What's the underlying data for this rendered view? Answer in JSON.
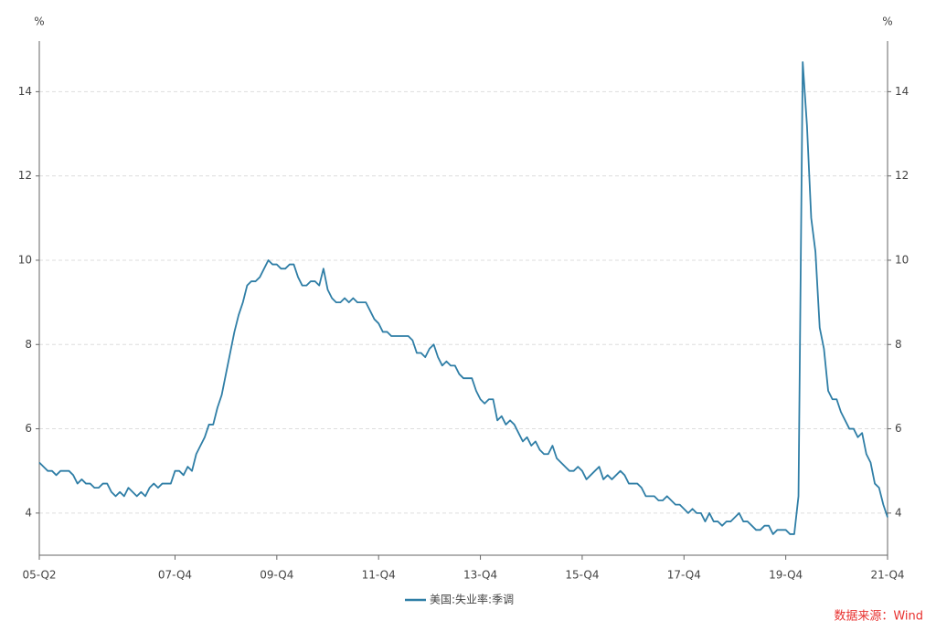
{
  "chart_data": {
    "type": "line",
    "y_label": "%",
    "y2_label": "%",
    "categories": [
      "05-Q2",
      null,
      null,
      null,
      null,
      null,
      null,
      null,
      null,
      null,
      null,
      null,
      null,
      null,
      null,
      null,
      null,
      null,
      null,
      null,
      null,
      null,
      null,
      null,
      null,
      null,
      null,
      null,
      null,
      null,
      null,
      null,
      "07-Q4",
      null,
      null,
      null,
      null,
      null,
      null,
      null,
      null,
      null,
      null,
      null,
      null,
      null,
      null,
      null,
      null,
      null,
      null,
      null,
      null,
      null,
      null,
      null,
      "09-Q4",
      null,
      null,
      null,
      null,
      null,
      null,
      null,
      null,
      null,
      null,
      null,
      null,
      null,
      null,
      null,
      null,
      null,
      null,
      null,
      null,
      null,
      null,
      null,
      "11-Q4",
      null,
      null,
      null,
      null,
      null,
      null,
      null,
      null,
      null,
      null,
      null,
      null,
      null,
      null,
      null,
      null,
      null,
      null,
      null,
      null,
      null,
      null,
      null,
      "13-Q4",
      null,
      null,
      null,
      null,
      null,
      null,
      null,
      null,
      null,
      null,
      null,
      null,
      null,
      null,
      null,
      null,
      null,
      null,
      null,
      null,
      null,
      null,
      null,
      "15-Q4",
      null,
      null,
      null,
      null,
      null,
      null,
      null,
      null,
      null,
      null,
      null,
      null,
      null,
      null,
      null,
      null,
      null,
      null,
      null,
      null,
      null,
      null,
      null,
      "17-Q4",
      null,
      null,
      null,
      null,
      null,
      null,
      null,
      null,
      null,
      null,
      null,
      null,
      null,
      null,
      null,
      null,
      null,
      null,
      null,
      null,
      null,
      null,
      null,
      "19-Q4",
      null,
      null,
      null,
      null,
      null,
      null,
      null,
      null,
      null,
      null,
      null,
      null,
      null,
      null,
      null,
      null,
      null,
      null,
      null,
      null,
      null,
      null,
      null,
      "21-Q4"
    ],
    "series": [
      {
        "name": "美国:失业率:季调",
        "color": "#2f7ea6",
        "values": [
          5.2,
          5.1,
          5.0,
          5.0,
          4.9,
          5.0,
          5.0,
          5.0,
          4.9,
          4.7,
          4.8,
          4.7,
          4.7,
          4.6,
          4.6,
          4.7,
          4.7,
          4.5,
          4.4,
          4.5,
          4.4,
          4.6,
          4.5,
          4.4,
          4.5,
          4.4,
          4.6,
          4.7,
          4.6,
          4.7,
          4.7,
          4.7,
          5.0,
          5.0,
          4.9,
          5.1,
          5.0,
          5.4,
          5.6,
          5.8,
          6.1,
          6.1,
          6.5,
          6.8,
          7.3,
          7.8,
          8.3,
          8.7,
          9.0,
          9.4,
          9.5,
          9.5,
          9.6,
          9.8,
          10.0,
          9.9,
          9.9,
          9.8,
          9.8,
          9.9,
          9.9,
          9.6,
          9.4,
          9.4,
          9.5,
          9.5,
          9.4,
          9.8,
          9.3,
          9.1,
          9.0,
          9.0,
          9.1,
          9.0,
          9.1,
          9.0,
          9.0,
          9.0,
          8.8,
          8.6,
          8.5,
          8.3,
          8.3,
          8.2,
          8.2,
          8.2,
          8.2,
          8.2,
          8.1,
          7.8,
          7.8,
          7.7,
          7.9,
          8.0,
          7.7,
          7.5,
          7.6,
          7.5,
          7.5,
          7.3,
          7.2,
          7.2,
          7.2,
          6.9,
          6.7,
          6.6,
          6.7,
          6.7,
          6.2,
          6.3,
          6.1,
          6.2,
          6.1,
          5.9,
          5.7,
          5.8,
          5.6,
          5.7,
          5.5,
          5.4,
          5.4,
          5.6,
          5.3,
          5.2,
          5.1,
          5.0,
          5.0,
          5.1,
          5.0,
          4.8,
          4.9,
          5.0,
          5.1,
          4.8,
          4.9,
          4.8,
          4.9,
          5.0,
          4.9,
          4.7,
          4.7,
          4.7,
          4.6,
          4.4,
          4.4,
          4.4,
          4.3,
          4.3,
          4.4,
          4.3,
          4.2,
          4.2,
          4.1,
          4.0,
          4.1,
          4.0,
          4.0,
          3.8,
          4.0,
          3.8,
          3.8,
          3.7,
          3.8,
          3.8,
          3.9,
          4.0,
          3.8,
          3.8,
          3.7,
          3.6,
          3.6,
          3.7,
          3.7,
          3.5,
          3.6,
          3.6,
          3.6,
          3.5,
          3.5,
          4.4,
          14.7,
          13.2,
          11.0,
          10.2,
          8.4,
          7.9,
          6.9,
          6.7,
          6.7,
          6.4,
          6.2,
          6.0,
          6.0,
          5.8,
          5.9,
          5.4,
          5.2,
          4.7,
          4.6,
          4.2,
          3.9
        ]
      }
    ],
    "ylim": [
      3,
      15.2
    ],
    "yticks": [
      4,
      6,
      8,
      10,
      12,
      14
    ],
    "y2lim": [
      3,
      15.2
    ],
    "y2ticks": [
      4,
      6,
      8,
      10,
      12,
      14
    ],
    "grid": true,
    "source": "数据来源：Wind"
  }
}
